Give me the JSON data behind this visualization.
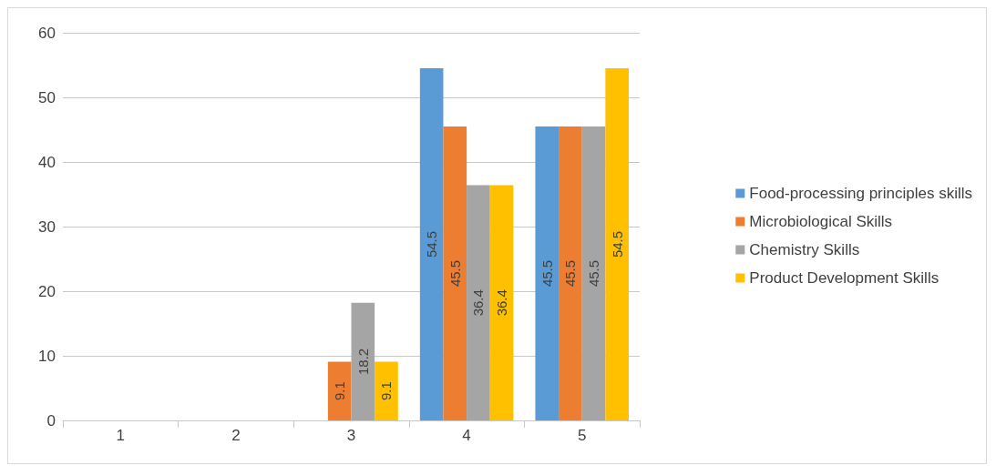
{
  "chart_data": {
    "type": "bar",
    "categories": [
      "1",
      "2",
      "3",
      "4",
      "5"
    ],
    "series": [
      {
        "name": "Food-processing principles skills",
        "color": "#5b9bd5",
        "values": [
          null,
          null,
          null,
          54.5,
          45.5
        ]
      },
      {
        "name": "Microbiological Skills",
        "color": "#ed7d31",
        "values": [
          null,
          null,
          9.1,
          45.5,
          45.5
        ]
      },
      {
        "name": "Chemistry Skills",
        "color": "#a5a5a5",
        "values": [
          null,
          null,
          18.2,
          36.4,
          45.5
        ]
      },
      {
        "name": "Product Development Skills",
        "color": "#ffc000",
        "values": [
          null,
          null,
          9.1,
          36.4,
          54.5
        ]
      }
    ],
    "ylim": [
      0,
      60
    ],
    "yticks": [
      0,
      10,
      20,
      30,
      40,
      50,
      60
    ],
    "grid": "y",
    "legend": "right",
    "data_labels": true
  }
}
